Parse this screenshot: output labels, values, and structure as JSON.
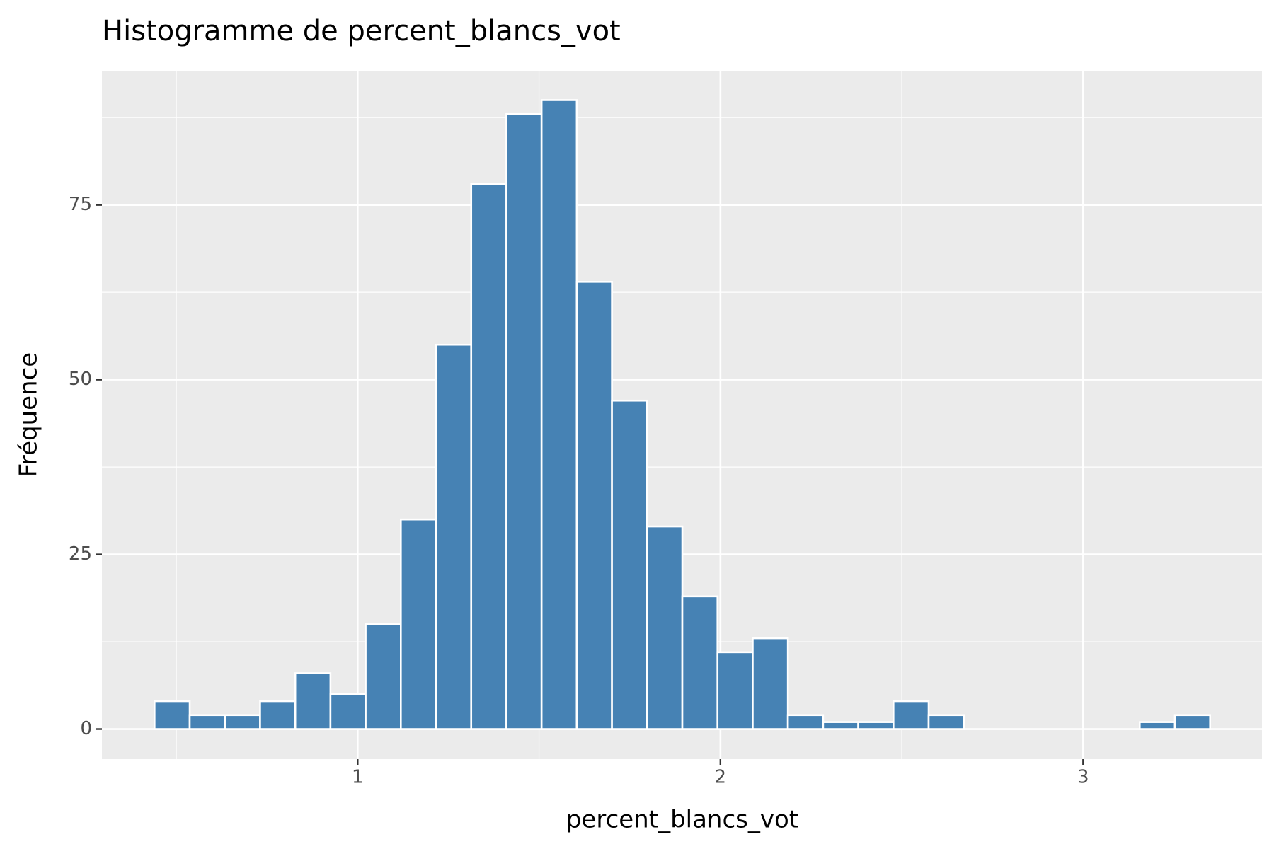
{
  "chart_data": {
    "type": "histogram",
    "title": "Histogramme de percent_blancs_vot",
    "x_label": "percent_blancs_vot",
    "y_label": "Fréquence",
    "bins": [
      0.44,
      0.537,
      0.634,
      0.731,
      0.828,
      0.925,
      1.022,
      1.119,
      1.216,
      1.313,
      1.41,
      1.507,
      1.604,
      1.701,
      1.798,
      1.895,
      1.992,
      2.089,
      2.186,
      2.283,
      2.38,
      2.477,
      2.574,
      2.671,
      2.768,
      2.865,
      2.962,
      3.059,
      3.156,
      3.253,
      3.35
    ],
    "values": [
      4,
      2,
      2,
      4,
      8,
      5,
      15,
      30,
      55,
      78,
      88,
      90,
      64,
      47,
      29,
      19,
      11,
      13,
      2,
      1,
      1,
      4,
      2,
      0,
      0,
      0,
      0,
      0,
      1,
      2
    ],
    "color": "#4682b4",
    "edge_color": "#ffffff",
    "xlim": [
      0.295,
      3.493
    ],
    "ylim": [
      -4.3,
      94.2
    ],
    "xticks": [
      1,
      2,
      3
    ],
    "yticks": [
      0,
      25,
      50,
      75
    ],
    "xminor": [
      0.5,
      1.5,
      2.5
    ],
    "yminor": [
      12.5,
      37.5,
      62.5,
      87.5
    ],
    "grid": true,
    "panel_color": "#ebebeb"
  }
}
